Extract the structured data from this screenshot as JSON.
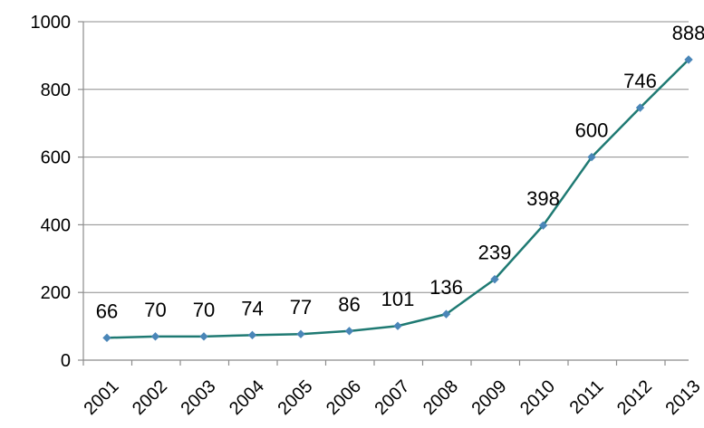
{
  "chart_data": {
    "type": "line",
    "categories": [
      "2001",
      "2002",
      "2003",
      "2004",
      "2005",
      "2006",
      "2007",
      "2008",
      "2009",
      "2010",
      "2011",
      "2012",
      "2013"
    ],
    "series": [
      {
        "values": [
          66,
          70,
          70,
          74,
          77,
          86,
          101,
          136,
          239,
          398,
          600,
          746,
          888
        ]
      }
    ],
    "ylim": [
      0,
      1000
    ],
    "yticks": [
      0,
      200,
      400,
      600,
      800,
      1000
    ],
    "grid": true,
    "legend": "none",
    "data_labels": true,
    "colors": {
      "line": "#1f7a73",
      "marker": "#4a86b8"
    }
  }
}
